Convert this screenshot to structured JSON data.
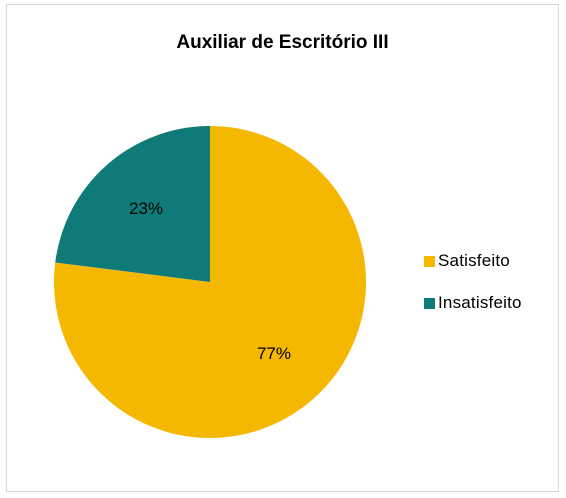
{
  "chart_data": {
    "type": "pie",
    "title": "Auxiliar de Escritório III",
    "slices": [
      {
        "label": "Satisfeito",
        "value": 77,
        "display": "77%",
        "color": "#F5B800"
      },
      {
        "label": "Insatisfeito",
        "value": 23,
        "display": "23%",
        "color": "#0F7B78"
      }
    ],
    "legend_position": "right"
  }
}
